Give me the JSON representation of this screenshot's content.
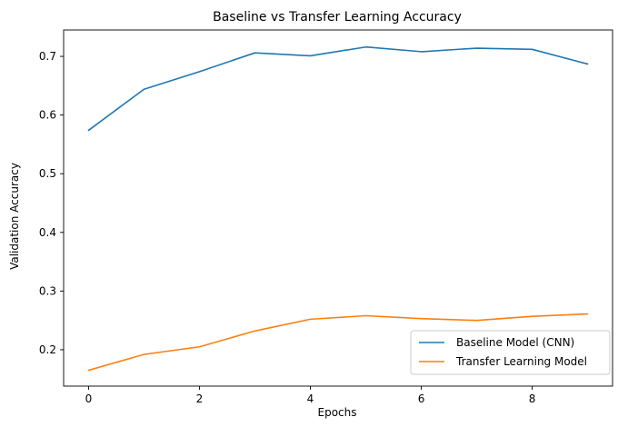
{
  "chart_data": {
    "type": "line",
    "title": "Baseline vs Transfer Learning Accuracy",
    "xlabel": "Epochs",
    "ylabel": "Validation Accuracy",
    "x": [
      0,
      1,
      2,
      3,
      4,
      5,
      6,
      7,
      8,
      9
    ],
    "xlim": [
      -0.45,
      9.45
    ],
    "ylim": [
      0.138,
      0.745
    ],
    "xticks": [
      0,
      2,
      4,
      6,
      8
    ],
    "xtick_labels": [
      "0",
      "2",
      "4",
      "6",
      "8"
    ],
    "yticks": [
      0.2,
      0.3,
      0.4,
      0.5,
      0.6,
      0.7
    ],
    "ytick_labels": [
      "0.2",
      "0.3",
      "0.4",
      "0.5",
      "0.6",
      "0.7"
    ],
    "grid": false,
    "legend_position": "lower-right",
    "series": [
      {
        "name": "Baseline Model (CNN)",
        "color": "#1f77b4",
        "values": [
          0.574,
          0.644,
          0.674,
          0.706,
          0.701,
          0.716,
          0.708,
          0.714,
          0.712,
          0.687
        ]
      },
      {
        "name": "Transfer Learning Model",
        "color": "#ff7f0e",
        "values": [
          0.165,
          0.192,
          0.205,
          0.232,
          0.252,
          0.258,
          0.253,
          0.25,
          0.257,
          0.261
        ]
      }
    ]
  }
}
